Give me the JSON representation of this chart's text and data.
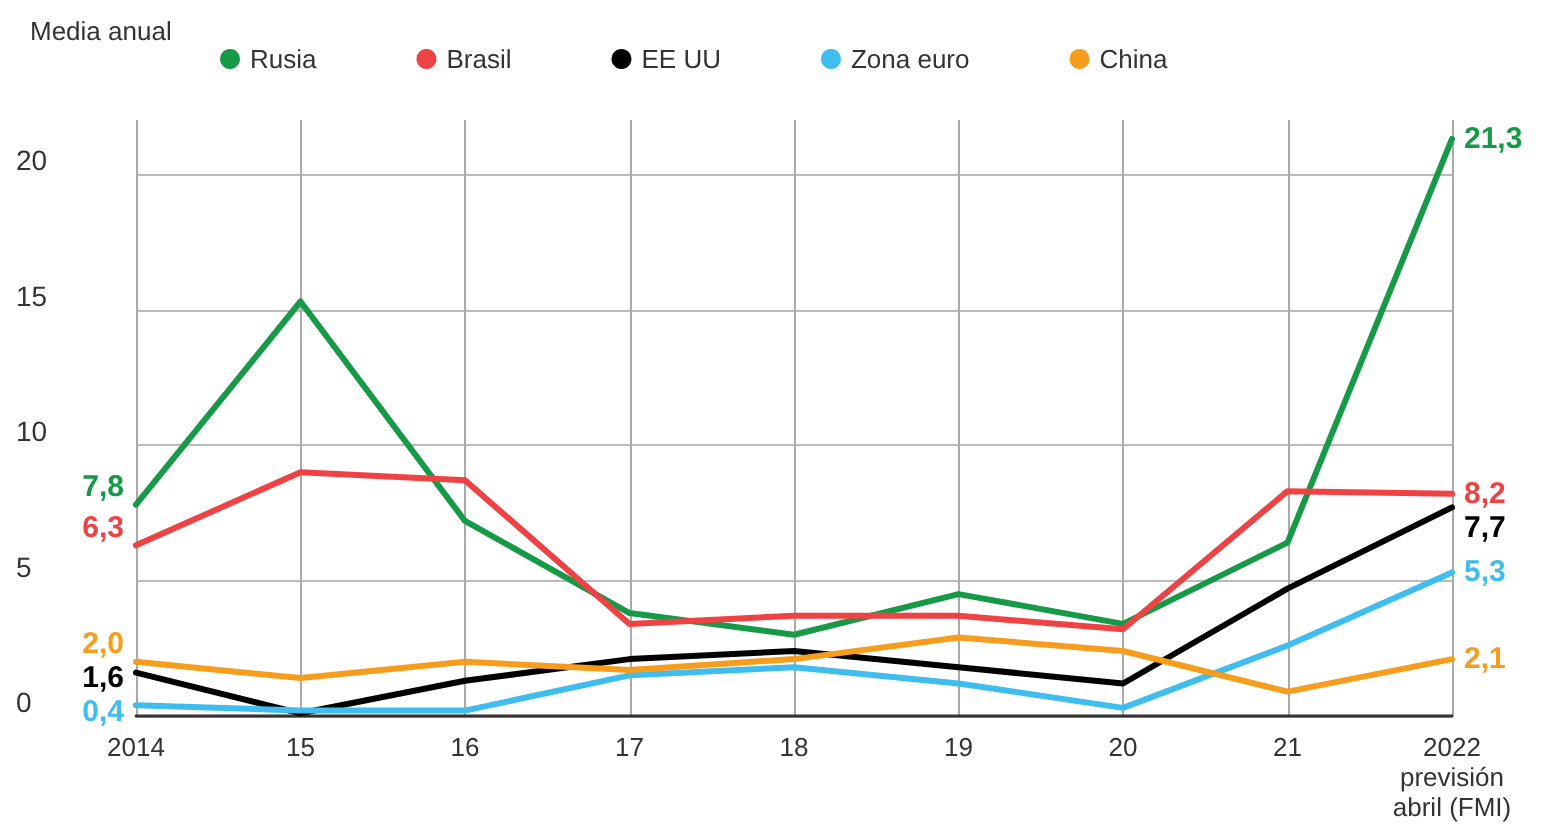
{
  "chart_data": {
    "type": "line",
    "title": "Media anual",
    "categories": [
      "2014",
      "15",
      "16",
      "17",
      "18",
      "19",
      "20",
      "21",
      "2022\nprevisión\nabril (FMI)"
    ],
    "series": [
      {
        "name": "Rusia",
        "color": "#179a47",
        "values": [
          7.8,
          15.3,
          7.2,
          3.8,
          3.0,
          4.5,
          3.4,
          6.4,
          21.3
        ],
        "value_labels": [
          "7,8",
          null,
          null,
          null,
          null,
          null,
          null,
          null,
          "21,3"
        ]
      },
      {
        "name": "Brasil",
        "color": "#ee4244",
        "values": [
          6.3,
          9.0,
          8.7,
          3.4,
          3.7,
          3.7,
          3.2,
          8.3,
          8.2
        ],
        "value_labels": [
          "6,3",
          null,
          null,
          null,
          null,
          null,
          null,
          null,
          "8,2"
        ]
      },
      {
        "name": "EE UU",
        "color": "#000000",
        "values": [
          1.6,
          0.1,
          1.3,
          2.1,
          2.4,
          1.8,
          1.2,
          4.7,
          7.7
        ],
        "value_labels": [
          "1,6",
          null,
          null,
          null,
          null,
          null,
          null,
          null,
          "7,7"
        ]
      },
      {
        "name": "Zona euro",
        "color": "#3ebdee",
        "values": [
          0.4,
          0.2,
          0.2,
          1.5,
          1.8,
          1.2,
          0.3,
          2.6,
          5.3
        ],
        "value_labels": [
          "0,4",
          null,
          null,
          null,
          null,
          null,
          null,
          null,
          "5,3"
        ]
      },
      {
        "name": "China",
        "color": "#f79d1e",
        "values": [
          2.0,
          1.4,
          2.0,
          1.7,
          2.1,
          2.9,
          2.4,
          0.9,
          2.1
        ],
        "value_labels": [
          "2,0",
          null,
          null,
          null,
          null,
          null,
          null,
          null,
          "2,1"
        ]
      }
    ],
    "ylim": [
      0,
      22
    ],
    "yticks": [
      0,
      5,
      10,
      15,
      20
    ],
    "grid": true,
    "legend": "top",
    "marker": "none",
    "line_style": "solid"
  }
}
